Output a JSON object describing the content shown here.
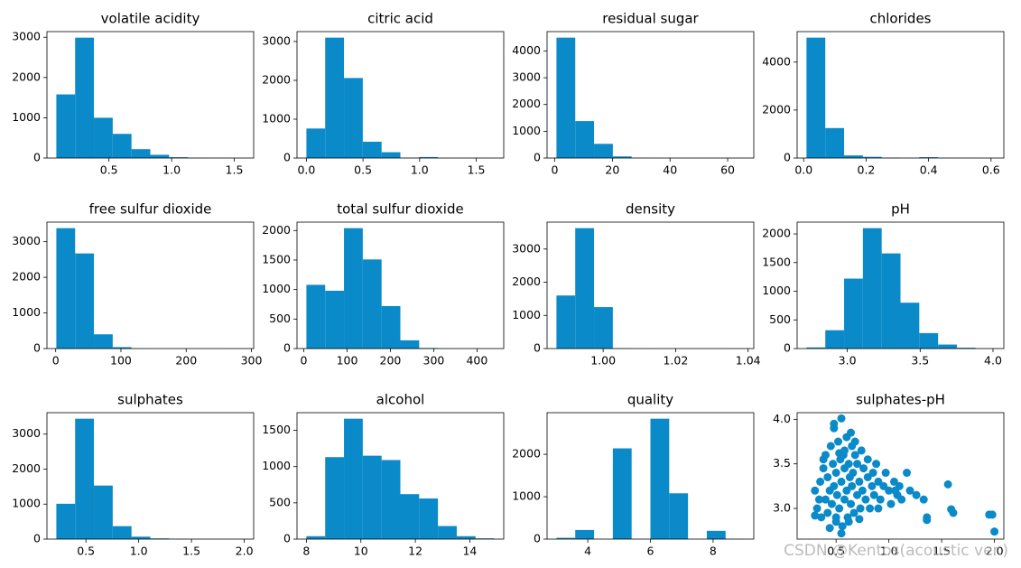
{
  "watermark": "CSDN @Kentos(acoustic ver.)",
  "chart_data": [
    {
      "type": "histogram",
      "title": "volatile acidity",
      "color": "#0a8ac8",
      "bins": [
        0.08,
        0.23,
        0.38,
        0.53,
        0.68,
        0.83,
        0.98,
        1.13,
        1.28,
        1.43,
        1.58
      ],
      "values": [
        1580,
        2990,
        1000,
        600,
        220,
        80,
        20,
        5,
        2,
        1
      ],
      "xlim": [
        0.005,
        1.655
      ],
      "ylim": [
        0,
        3140
      ],
      "xticks": [
        {
          "value": 0.5,
          "label": "0.5"
        },
        {
          "value": 1,
          "label": "1.0"
        },
        {
          "value": 1.5,
          "label": "1.5"
        }
      ],
      "yticks": [
        0,
        1000,
        2000,
        3000
      ]
    },
    {
      "type": "histogram",
      "title": "citric acid",
      "color": "#0a8ac8",
      "bins": [
        0,
        0.166,
        0.332,
        0.498,
        0.664,
        0.83,
        0.996,
        1.162,
        1.328,
        1.494,
        1.66
      ],
      "values": [
        760,
        3100,
        2060,
        420,
        150,
        5,
        25,
        0,
        0,
        1
      ],
      "xlim": [
        -0.083,
        1.743
      ],
      "ylim": [
        0,
        3255
      ],
      "xticks": [
        {
          "value": 0,
          "label": "0.0"
        },
        {
          "value": 0.5,
          "label": "0.5"
        },
        {
          "value": 1,
          "label": "1.0"
        },
        {
          "value": 1.5,
          "label": "1.5"
        }
      ],
      "yticks": [
        0,
        1000,
        2000,
        3000
      ]
    },
    {
      "type": "histogram",
      "title": "residual sugar",
      "color": "#0a8ac8",
      "bins": [
        0.6,
        7.12,
        13.64,
        20.16,
        26.68,
        33.2,
        39.72,
        46.24,
        52.76,
        59.28,
        65.8
      ],
      "values": [
        4500,
        1380,
        530,
        60,
        5,
        0,
        0,
        0,
        0,
        1
      ],
      "xlim": [
        -2.66,
        69.06
      ],
      "ylim": [
        0,
        4725
      ],
      "xticks": [
        0,
        20,
        40,
        60
      ],
      "yticks": [
        0,
        1000,
        2000,
        3000,
        4000
      ]
    },
    {
      "type": "histogram",
      "title": "chlorides",
      "color": "#0a8ac8",
      "bins": [
        0.009,
        0.0692,
        0.1294,
        0.1896,
        0.2498,
        0.31,
        0.3702,
        0.4304,
        0.4906,
        0.5508,
        0.611
      ],
      "values": [
        5020,
        1250,
        110,
        50,
        15,
        3,
        35,
        5,
        3,
        1
      ],
      "xlim": [
        -0.021,
        0.641
      ],
      "ylim": [
        0,
        5271
      ],
      "xticks": [
        {
          "value": 0,
          "label": "0.0"
        },
        {
          "value": 0.2,
          "label": "0.2"
        },
        {
          "value": 0.4,
          "label": "0.4"
        },
        {
          "value": 0.6,
          "label": "0.6"
        }
      ],
      "yticks": [
        0,
        2000,
        4000
      ]
    },
    {
      "type": "histogram",
      "title": "free sulfur dioxide",
      "color": "#0a8ac8",
      "bins": [
        1,
        29.8,
        58.6,
        87.4,
        116.2,
        145,
        173.8,
        202.6,
        231.4,
        260.2,
        289
      ],
      "values": [
        3380,
        2670,
        400,
        40,
        3,
        0,
        0,
        0,
        0,
        1
      ],
      "xlim": [
        -13.4,
        303.4
      ],
      "ylim": [
        0,
        3549
      ],
      "xticks": [
        0,
        100,
        200,
        300
      ],
      "yticks": [
        0,
        1000,
        2000,
        3000
      ]
    },
    {
      "type": "histogram",
      "title": "total sulfur dioxide",
      "color": "#0a8ac8",
      "bins": [
        6,
        49.4,
        92.8,
        136.2,
        179.6,
        223,
        266.4,
        309.8,
        353.2,
        396.6,
        440
      ],
      "values": [
        1080,
        980,
        2040,
        1510,
        720,
        140,
        10,
        2,
        0,
        1
      ],
      "xlim": [
        -15.7,
        461.7
      ],
      "ylim": [
        0,
        2142
      ],
      "xticks": [
        0,
        100,
        200,
        300,
        400
      ],
      "yticks": [
        0,
        500,
        1000,
        1500,
        2000
      ]
    },
    {
      "type": "histogram",
      "title": "density",
      "color": "#0a8ac8",
      "bins": [
        0.98711,
        0.992297,
        0.997484,
        1.002671,
        1.007858,
        1.013045,
        1.018232,
        1.023419,
        1.028606,
        1.033793,
        1.03898
      ],
      "values": [
        1600,
        3630,
        1250,
        10,
        3,
        0,
        0,
        0,
        0,
        1
      ],
      "xlim": [
        0.98452,
        1.04157
      ],
      "ylim": [
        0,
        3811
      ],
      "xticks": [
        {
          "value": 1,
          "label": "1.00"
        },
        {
          "value": 1.02,
          "label": "1.02"
        },
        {
          "value": 1.04,
          "label": "1.04"
        }
      ],
      "yticks": [
        0,
        1000,
        2000,
        3000
      ]
    },
    {
      "type": "histogram",
      "title": "pH",
      "color": "#0a8ac8",
      "bins": [
        2.72,
        2.849,
        2.978,
        3.107,
        3.236,
        3.365,
        3.494,
        3.623,
        3.752,
        3.881,
        4.01
      ],
      "values": [
        20,
        320,
        1220,
        2100,
        1660,
        800,
        270,
        70,
        15,
        3
      ],
      "xlim": [
        2.6555,
        4.0745
      ],
      "ylim": [
        0,
        2205
      ],
      "xticks": [
        {
          "value": 3,
          "label": "3.0"
        },
        {
          "value": 3.5,
          "label": "3.5"
        },
        {
          "value": 4,
          "label": "4.0"
        }
      ],
      "yticks": [
        0,
        500,
        1000,
        1500,
        2000
      ]
    },
    {
      "type": "histogram",
      "title": "sulphates",
      "color": "#0a8ac8",
      "bins": [
        0.22,
        0.398,
        0.576,
        0.754,
        0.932,
        1.11,
        1.288,
        1.466,
        1.644,
        1.822,
        2.0
      ],
      "values": [
        1010,
        3440,
        1530,
        370,
        70,
        20,
        5,
        2,
        1,
        2
      ],
      "xlim": [
        0.131,
        2.089
      ],
      "ylim": [
        0,
        3612
      ],
      "xticks": [
        {
          "value": 0.5,
          "label": "0.5"
        },
        {
          "value": 1,
          "label": "1.0"
        },
        {
          "value": 1.5,
          "label": "1.5"
        },
        {
          "value": 2,
          "label": "2.0"
        }
      ],
      "yticks": [
        0,
        1000,
        2000,
        3000
      ]
    },
    {
      "type": "histogram",
      "title": "alcohol",
      "color": "#0a8ac8",
      "bins": [
        8,
        8.69,
        9.38,
        10.07,
        10.76,
        11.45,
        12.14,
        12.83,
        13.52,
        14.21,
        14.9
      ],
      "values": [
        40,
        1130,
        1660,
        1150,
        1090,
        620,
        560,
        180,
        40,
        10
      ],
      "xlim": [
        7.655,
        15.245
      ],
      "ylim": [
        0,
        1743
      ],
      "xticks": [
        8,
        10,
        12,
        14
      ],
      "yticks": [
        0,
        500,
        1000,
        1500
      ]
    },
    {
      "type": "histogram",
      "title": "quality",
      "color": "#0a8ac8",
      "bins": [
        3,
        3.6,
        4.2,
        4.8,
        5.4,
        6,
        6.6,
        7.2,
        7.8,
        8.4,
        9
      ],
      "values": [
        30,
        215,
        0,
        2140,
        0,
        2840,
        1080,
        0,
        195,
        5
      ],
      "xlim": [
        2.7,
        9.3
      ],
      "ylim": [
        0,
        2982
      ],
      "xticks": [
        4,
        6,
        8
      ],
      "yticks": [
        0,
        1000,
        2000
      ]
    },
    {
      "type": "scatter",
      "title": "sulphates-pH",
      "color": "#0a8ac8",
      "x": [
        0.3,
        0.32,
        0.35,
        0.36,
        0.38,
        0.4,
        0.4,
        0.42,
        0.42,
        0.44,
        0.45,
        0.46,
        0.47,
        0.48,
        0.48,
        0.5,
        0.5,
        0.51,
        0.52,
        0.53,
        0.54,
        0.55,
        0.55,
        0.56,
        0.57,
        0.58,
        0.58,
        0.6,
        0.6,
        0.61,
        0.62,
        0.63,
        0.64,
        0.65,
        0.65,
        0.66,
        0.67,
        0.68,
        0.7,
        0.7,
        0.72,
        0.73,
        0.74,
        0.75,
        0.76,
        0.78,
        0.8,
        0.8,
        0.82,
        0.84,
        0.85,
        0.86,
        0.88,
        0.9,
        0.92,
        0.95,
        0.97,
        1.0,
        1.02,
        1.05,
        1.08,
        1.1,
        1.12,
        1.17,
        1.2,
        1.26,
        1.33,
        1.36,
        1.36,
        1.56,
        1.59,
        1.61,
        1.95,
        1.98,
        2.0,
        0.55,
        0.48,
        0.34,
        0.44,
        0.58,
        0.62,
        0.68,
        0.38,
        0.5,
        0.72,
        0.9,
        1.06,
        0.3,
        0.64,
        0.53
      ],
      "y": [
        3.2,
        3.0,
        3.3,
        2.9,
        3.45,
        3.1,
        3.6,
        2.95,
        3.35,
        3.2,
        3.7,
        3.05,
        3.5,
        3.25,
        3.9,
        2.85,
        3.4,
        3.15,
        3.75,
        3.0,
        3.55,
        3.3,
        4.01,
        2.8,
        3.6,
        3.1,
        3.45,
        3.2,
        3.8,
        2.9,
        3.5,
        3.35,
        3.05,
        3.7,
        3.25,
        3.4,
        2.95,
        3.6,
        3.15,
        3.5,
        3.3,
        3.0,
        3.65,
        3.2,
        3.45,
        3.1,
        3.35,
        3.55,
        3.0,
        3.25,
        3.4,
        3.15,
        3.5,
        3.3,
        3.1,
        3.25,
        3.4,
        3.2,
        3.05,
        3.3,
        3.15,
        3.25,
        3.1,
        3.4,
        3.2,
        3.15,
        3.1,
        2.9,
        2.87,
        3.27,
        2.99,
        2.95,
        2.93,
        2.93,
        2.74,
        2.72,
        3.95,
        3.1,
        2.78,
        3.65,
        2.85,
        3.75,
        3.55,
        2.9,
        2.88,
        3.0,
        3.2,
        2.92,
        3.85,
        3.62
      ],
      "xlim": [
        0.131,
        2.089
      ],
      "ylim": [
        2.6555,
        4.0745
      ],
      "xticks": [
        {
          "value": 0.5,
          "label": "0.5"
        },
        {
          "value": 1,
          "label": "1.0"
        },
        {
          "value": 1.5,
          "label": "1.5"
        },
        {
          "value": 2,
          "label": "2.0"
        }
      ],
      "yticks": [
        {
          "value": 3,
          "label": "3.0"
        },
        {
          "value": 3.5,
          "label": "3.5"
        },
        {
          "value": 4,
          "label": "4.0"
        }
      ]
    }
  ]
}
